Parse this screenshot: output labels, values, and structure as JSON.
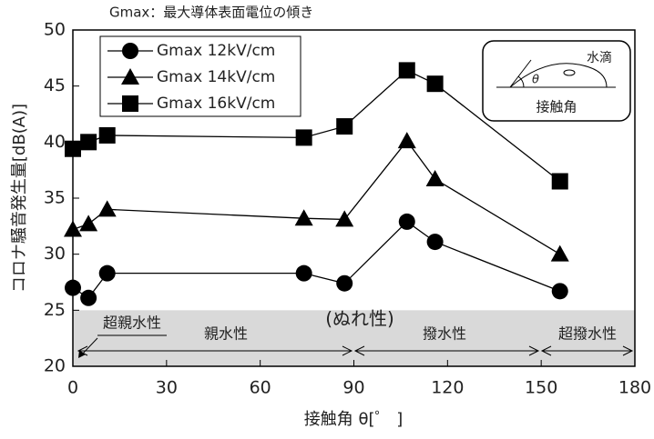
{
  "chart_data": {
    "type": "line",
    "title": "Gmax：最大導体表面電位の傾き",
    "x_label": "接触角 θ[゜ ]",
    "y_label": "コロナ騒音発生量[dB(A)]",
    "xlim": [
      0,
      180
    ],
    "xticks": [
      0,
      30,
      60,
      90,
      120,
      150,
      180
    ],
    "ylim": [
      20,
      50
    ],
    "yticks": [
      20,
      25,
      30,
      35,
      40,
      45,
      50
    ],
    "grid": false,
    "legend": "upper left",
    "x": [
      0,
      5,
      11,
      74,
      87,
      107,
      116,
      156
    ],
    "series": [
      {
        "name": "Gmax 12kV/cm",
        "color": "#000000",
        "marker": "circle",
        "values": [
          27.0,
          26.1,
          28.3,
          28.3,
          27.4,
          32.9,
          31.1,
          26.7
        ]
      },
      {
        "name": "Gmax 14kV/cm",
        "color": "#000000",
        "marker": "triangle",
        "values": [
          32.2,
          32.7,
          34.0,
          33.2,
          33.1,
          40.1,
          36.7,
          30.0
        ]
      },
      {
        "name": "Gmax 16kV/cm",
        "color": "#000000",
        "marker": "square",
        "values": [
          39.4,
          40.0,
          40.6,
          40.4,
          41.4,
          46.4,
          45.2,
          36.5
        ]
      }
    ],
    "shaded_band": {
      "ylim": [
        20,
        25
      ],
      "color": "#d9d9d9"
    },
    "annotations": {
      "wettability": "(ぬれ性)",
      "super_hydrophilic": "超親水性",
      "hydrophilic": "親水性",
      "hydrophobic": "撥水性",
      "super_hydrophobic": "超撥水性"
    },
    "inset": {
      "droplet": "水滴",
      "theta": "θ",
      "label": "接触角"
    }
  }
}
